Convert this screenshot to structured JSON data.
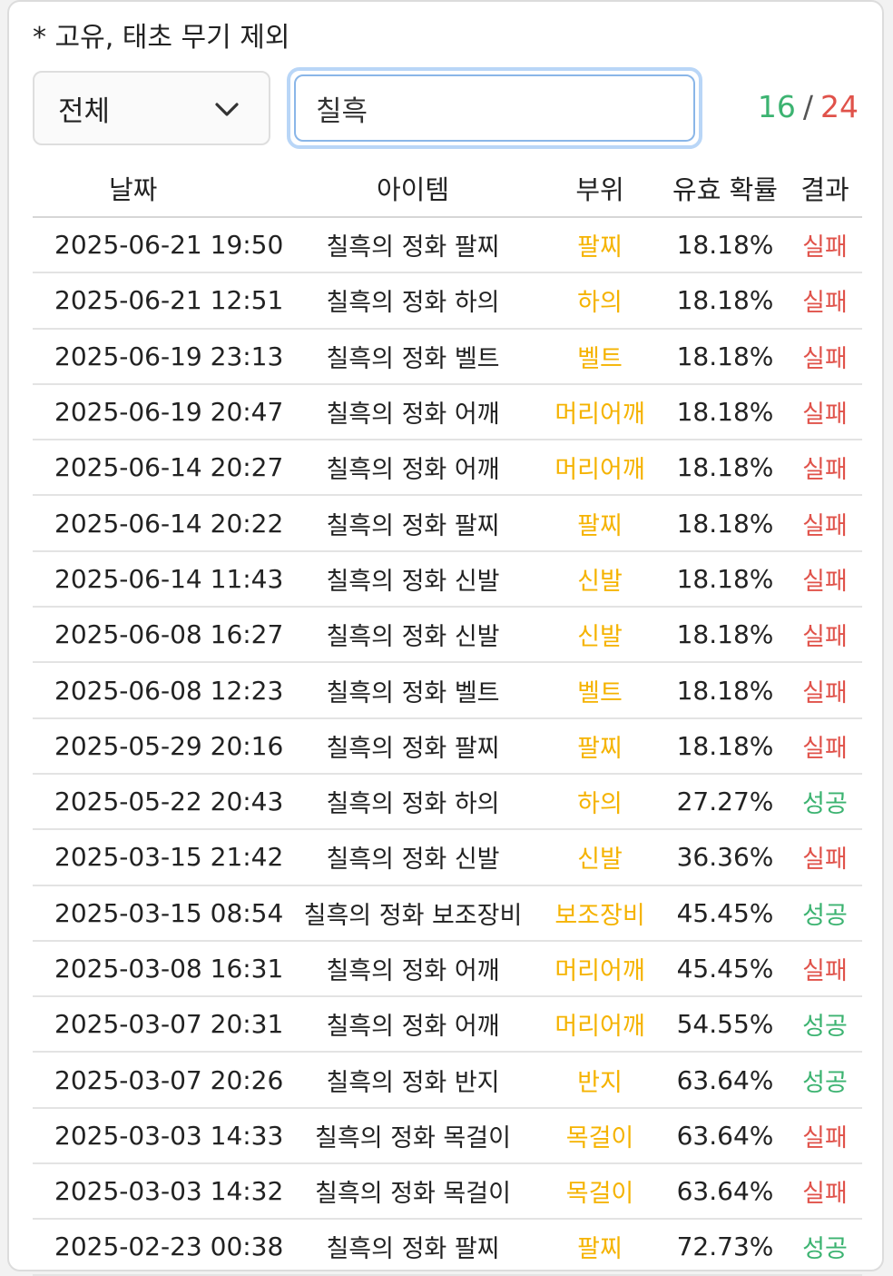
{
  "note": "* 고유, 태초 무기 제외",
  "filter": {
    "selected": "전체"
  },
  "search": {
    "value": "칠흑"
  },
  "counter": {
    "success": "16",
    "separator": "/",
    "total": "24"
  },
  "colors": {
    "part": "#f5b301",
    "fail": "#e0524a",
    "success": "#3cb371",
    "focus": "#8ab6e8"
  },
  "table": {
    "headers": {
      "date": "날짜",
      "item": "아이템",
      "part": "부위",
      "prob": "유효 확률",
      "result": "결과"
    },
    "rows": [
      {
        "date": "2025-06-21 19:50",
        "item": "칠흑의 정화 팔찌",
        "part": "팔찌",
        "prob": "18.18%",
        "result": "실패"
      },
      {
        "date": "2025-06-21 12:51",
        "item": "칠흑의 정화 하의",
        "part": "하의",
        "prob": "18.18%",
        "result": "실패"
      },
      {
        "date": "2025-06-19 23:13",
        "item": "칠흑의 정화 벨트",
        "part": "벨트",
        "prob": "18.18%",
        "result": "실패"
      },
      {
        "date": "2025-06-19 20:47",
        "item": "칠흑의 정화 어깨",
        "part": "머리어깨",
        "prob": "18.18%",
        "result": "실패"
      },
      {
        "date": "2025-06-14 20:27",
        "item": "칠흑의 정화 어깨",
        "part": "머리어깨",
        "prob": "18.18%",
        "result": "실패"
      },
      {
        "date": "2025-06-14 20:22",
        "item": "칠흑의 정화 팔찌",
        "part": "팔찌",
        "prob": "18.18%",
        "result": "실패"
      },
      {
        "date": "2025-06-14 11:43",
        "item": "칠흑의 정화 신발",
        "part": "신발",
        "prob": "18.18%",
        "result": "실패"
      },
      {
        "date": "2025-06-08 16:27",
        "item": "칠흑의 정화 신발",
        "part": "신발",
        "prob": "18.18%",
        "result": "실패"
      },
      {
        "date": "2025-06-08 12:23",
        "item": "칠흑의 정화 벨트",
        "part": "벨트",
        "prob": "18.18%",
        "result": "실패"
      },
      {
        "date": "2025-05-29 20:16",
        "item": "칠흑의 정화 팔찌",
        "part": "팔찌",
        "prob": "18.18%",
        "result": "실패"
      },
      {
        "date": "2025-05-22 20:43",
        "item": "칠흑의 정화 하의",
        "part": "하의",
        "prob": "27.27%",
        "result": "성공"
      },
      {
        "date": "2025-03-15 21:42",
        "item": "칠흑의 정화 신발",
        "part": "신발",
        "prob": "36.36%",
        "result": "실패"
      },
      {
        "date": "2025-03-15 08:54",
        "item": "칠흑의 정화 보조장비",
        "part": "보조장비",
        "prob": "45.45%",
        "result": "성공"
      },
      {
        "date": "2025-03-08 16:31",
        "item": "칠흑의 정화 어깨",
        "part": "머리어깨",
        "prob": "45.45%",
        "result": "실패"
      },
      {
        "date": "2025-03-07 20:31",
        "item": "칠흑의 정화 어깨",
        "part": "머리어깨",
        "prob": "54.55%",
        "result": "성공"
      },
      {
        "date": "2025-03-07 20:26",
        "item": "칠흑의 정화 반지",
        "part": "반지",
        "prob": "63.64%",
        "result": "성공"
      },
      {
        "date": "2025-03-03 14:33",
        "item": "칠흑의 정화 목걸이",
        "part": "목걸이",
        "prob": "63.64%",
        "result": "실패"
      },
      {
        "date": "2025-03-03 14:32",
        "item": "칠흑의 정화 목걸이",
        "part": "목걸이",
        "prob": "63.64%",
        "result": "실패"
      },
      {
        "date": "2025-02-23 00:38",
        "item": "칠흑의 정화 팔찌",
        "part": "팔찌",
        "prob": "72.73%",
        "result": "성공"
      }
    ]
  }
}
